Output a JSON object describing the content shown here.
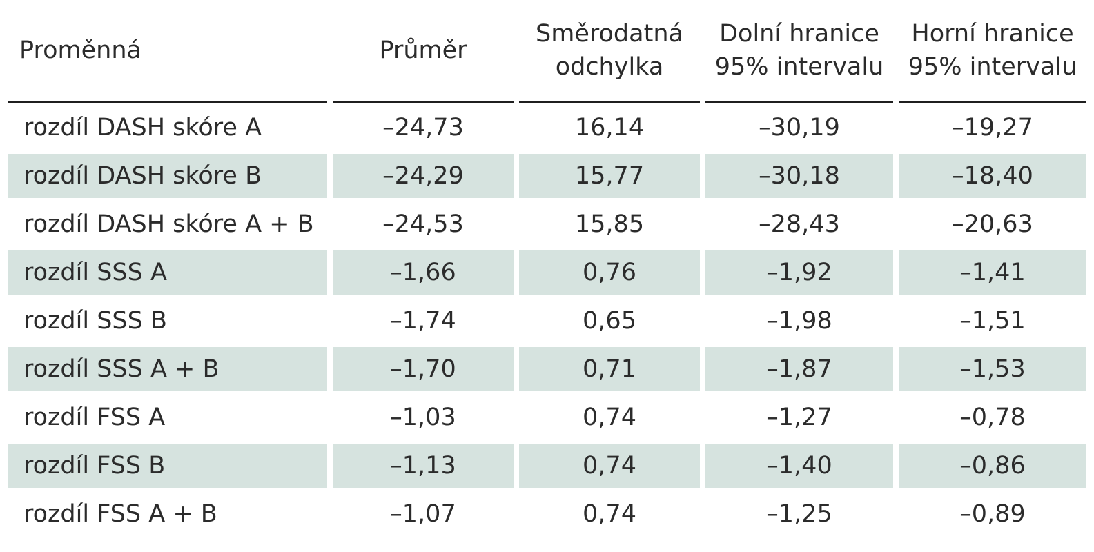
{
  "table": {
    "headers": [
      "Proměnná",
      "Průměr",
      "Směrodatná odchylka",
      "Dolní hranice 95% intervalu",
      "Horní hranice 95% intervalu"
    ],
    "rows": [
      {
        "label": "rozdíl DASH skóre A",
        "mean": "–24,73",
        "sd": "16,14",
        "lower": "–30,19",
        "upper": "–19,27",
        "shaded": false
      },
      {
        "label": "rozdíl DASH skóre B",
        "mean": "–24,29",
        "sd": "15,77",
        "lower": "–30,18",
        "upper": "–18,40",
        "shaded": true
      },
      {
        "label": "rozdíl DASH skóre A + B",
        "mean": "–24,53",
        "sd": "15,85",
        "lower": "–28,43",
        "upper": "–20,63",
        "shaded": false
      },
      {
        "label": "rozdíl SSS A",
        "mean": "–1,66",
        "sd": "0,76",
        "lower": "–1,92",
        "upper": "–1,41",
        "shaded": true
      },
      {
        "label": "rozdíl SSS B",
        "mean": "–1,74",
        "sd": "0,65",
        "lower": "–1,98",
        "upper": "–1,51",
        "shaded": false
      },
      {
        "label": "rozdíl SSS A + B",
        "mean": "–1,70",
        "sd": "0,71",
        "lower": "–1,87",
        "upper": "–1,53",
        "shaded": true
      },
      {
        "label": "rozdíl FSS A",
        "mean": "–1,03",
        "sd": "0,74",
        "lower": "–1,27",
        "upper": "–0,78",
        "shaded": false
      },
      {
        "label": "rozdíl FSS B",
        "mean": "–1,13",
        "sd": "0,74",
        "lower": "–1,40",
        "upper": "–0,86",
        "shaded": true
      },
      {
        "label": "rozdíl FSS A + B",
        "mean": "–1,07",
        "sd": "0,74",
        "lower": "–1,25",
        "upper": "–0,89",
        "shaded": false
      }
    ]
  },
  "colors": {
    "shade": "#d6e3df",
    "text": "#2b2b2b",
    "rule": "#1f1f1f"
  }
}
